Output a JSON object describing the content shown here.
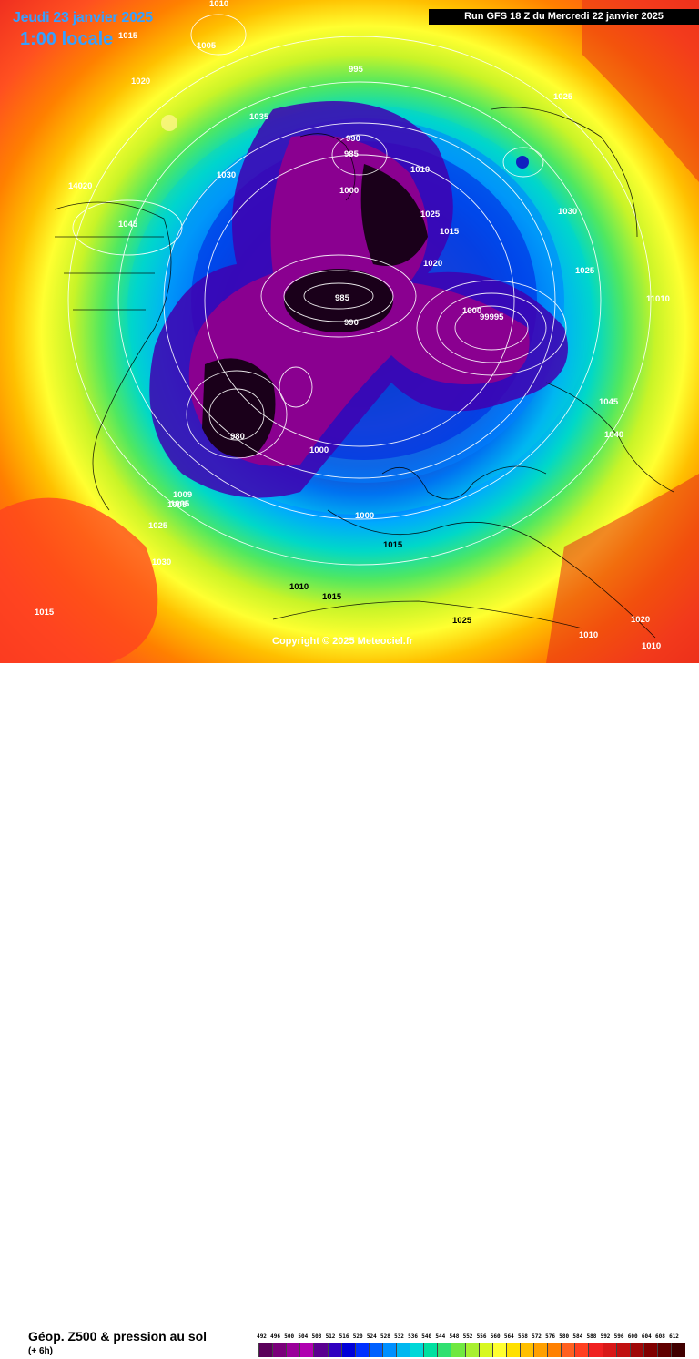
{
  "header": {
    "date": "Jeudi 23 janvier 2025",
    "time": "1:00 locale",
    "run": "Run GFS 18 Z du Mercredi 22 janvier 2025"
  },
  "copyright": "Copyright © 2025 Meteociel.fr",
  "footer": {
    "title": "Géop. Z500 & pression au sol",
    "subtitle": "(+ 6h)"
  },
  "legend": {
    "values": [
      "492",
      "496",
      "500",
      "504",
      "508",
      "512",
      "516",
      "520",
      "524",
      "528",
      "532",
      "536",
      "540",
      "544",
      "548",
      "552",
      "556",
      "560",
      "564",
      "568",
      "572",
      "576",
      "580",
      "584",
      "588",
      "592",
      "596",
      "600",
      "604",
      "608",
      "612"
    ],
    "colors": [
      "#5a005a",
      "#7a007a",
      "#9a009a",
      "#b000b0",
      "#5a0090",
      "#3000c0",
      "#0000d8",
      "#0030ff",
      "#0060ff",
      "#0090ff",
      "#00b8f0",
      "#00d8d8",
      "#00e0a0",
      "#30e070",
      "#70e840",
      "#a8f030",
      "#d8f820",
      "#ffff30",
      "#ffe000",
      "#ffc000",
      "#ffa000",
      "#ff8000",
      "#ff6020",
      "#ff4020",
      "#f02020",
      "#d81818",
      "#c01010",
      "#a00808",
      "#800000",
      "#600000",
      "#400000"
    ]
  },
  "pressure_labels": [
    "1010",
    "1015",
    "1005",
    "985",
    "1000",
    "1020",
    "1035",
    "1025",
    "1030",
    "1040",
    "1045",
    "14020",
    "995",
    "990",
    "1010",
    "1025",
    "1030",
    "1015",
    "1020",
    "1000",
    "99995",
    "1045",
    "1040",
    "985",
    "990",
    "980",
    "1000",
    "1005",
    "1025",
    "1015",
    "1000",
    "1010",
    "1025",
    "1015",
    "1010",
    "1030",
    "1010",
    "1020",
    "1015",
    "1025",
    "11010",
    "1005",
    "1009"
  ]
}
